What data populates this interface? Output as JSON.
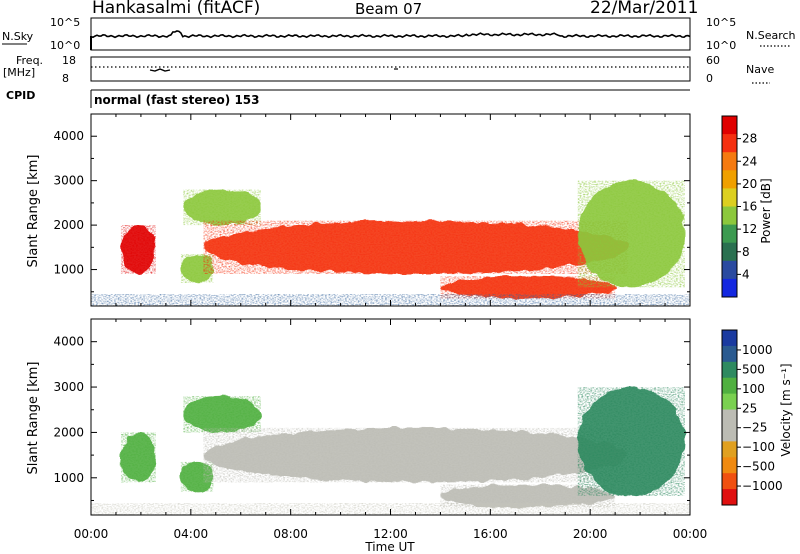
{
  "header": {
    "station": "Hankasalmi (fitACF)",
    "beam": "Beam 07",
    "date": "22/Mar/2011"
  },
  "strips": {
    "nsky_label": "N.Sky",
    "nsky_ticks": [
      "10^5",
      "10^0"
    ],
    "nsearch_label": "N.Search",
    "nsearch_ticks": [
      "10^5",
      "10^0"
    ],
    "freq_label": "Freq.",
    "freq_unit": "[MHz]",
    "freq_ticks": [
      "18",
      "8"
    ],
    "nave_label": "Nave",
    "nave_ticks": [
      "60",
      "0"
    ],
    "cpid_label": "CPID",
    "cpid_value": "normal (fast stereo) 153"
  },
  "panels": {
    "ylabel": "Slant Range [km]",
    "yticks": [
      "4000",
      "3000",
      "2000",
      "1000"
    ],
    "xlabel": "Time UT",
    "xticks": [
      "00:00",
      "04:00",
      "08:00",
      "12:00",
      "16:00",
      "20:00",
      "00:00"
    ]
  },
  "power_scale": {
    "label": "Power [dB]",
    "ticks": [
      "28",
      "24",
      "20",
      "16",
      "12",
      "8",
      "4"
    ],
    "colors": [
      "#e00000",
      "#f53010",
      "#f57a10",
      "#f0a000",
      "#dccf20",
      "#8cc83c",
      "#3c9a50",
      "#2a7050",
      "#2a4aa0",
      "#1428e0"
    ]
  },
  "velocity_scale": {
    "label": "Velocity [m s⁻¹]",
    "ticks": [
      "1000",
      "500",
      "100",
      "25",
      "−25",
      "−100",
      "−500",
      "−1000"
    ],
    "colors": [
      "#1a3aa0",
      "#2a5a90",
      "#2e8a60",
      "#50b040",
      "#7ad050",
      "#bcbcb4",
      "#bcbcb4",
      "#e0a020",
      "#f08a10",
      "#f05010",
      "#e01010"
    ]
  },
  "chart_data": [
    {
      "type": "heatmap",
      "title": "Power",
      "xlabel": "Time UT",
      "ylabel": "Slant Range [km]",
      "x_range_hours": [
        0,
        24
      ],
      "y_range_km": [
        180,
        4500
      ],
      "colorbar_label": "Power [dB]",
      "colorbar_range_db": [
        0,
        32
      ],
      "echo_regions": [
        {
          "t_start": 1.2,
          "t_end": 2.6,
          "r_min": 900,
          "r_max": 2000,
          "power_db": 29
        },
        {
          "t_start": 3.6,
          "t_end": 4.9,
          "r_min": 700,
          "r_max": 1350,
          "power_db": 14
        },
        {
          "t_start": 3.7,
          "t_end": 6.8,
          "r_min": 2000,
          "r_max": 2800,
          "power_db": 15
        },
        {
          "t_start": 4.5,
          "t_end": 21.5,
          "r_min": 900,
          "r_max": 2100,
          "power_db": 27
        },
        {
          "t_start": 14.0,
          "t_end": 21.0,
          "r_min": 350,
          "r_max": 850,
          "power_db": 28
        },
        {
          "t_start": 19.5,
          "t_end": 23.8,
          "r_min": 600,
          "r_max": 3000,
          "power_db": 15
        }
      ]
    },
    {
      "type": "heatmap",
      "title": "Velocity",
      "xlabel": "Time UT",
      "ylabel": "Slant Range [km]",
      "x_range_hours": [
        0,
        24
      ],
      "y_range_km": [
        180,
        4500
      ],
      "colorbar_label": "Velocity [m s⁻¹]",
      "echo_regions": [
        {
          "t_start": 1.2,
          "t_end": 2.6,
          "r_min": 900,
          "r_max": 2000,
          "velocity_ms": 50
        },
        {
          "t_start": 3.6,
          "t_end": 4.9,
          "r_min": 700,
          "r_max": 1350,
          "velocity_ms": 60
        },
        {
          "t_start": 3.7,
          "t_end": 6.8,
          "r_min": 2000,
          "r_max": 2800,
          "velocity_ms": 80
        },
        {
          "t_start": 4.5,
          "t_end": 21.5,
          "r_min": 900,
          "r_max": 2100,
          "velocity_ms": 0
        },
        {
          "t_start": 14.0,
          "t_end": 21.0,
          "r_min": 350,
          "r_max": 850,
          "velocity_ms": 0
        },
        {
          "t_start": 19.5,
          "t_end": 23.8,
          "r_min": 600,
          "r_max": 3000,
          "velocity_ms": 200
        }
      ]
    }
  ]
}
